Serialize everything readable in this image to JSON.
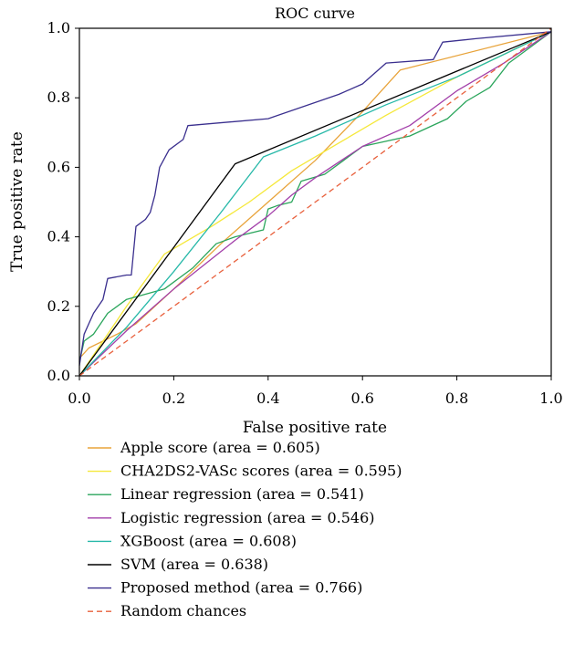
{
  "chart_data": {
    "type": "line",
    "title": "ROC curve",
    "xlabel": "False positive rate",
    "ylabel": "True positive rate",
    "xlim": [
      0,
      1
    ],
    "ylim": [
      0,
      1
    ],
    "x_ticks": [
      "0.0",
      "0.2",
      "0.4",
      "0.6",
      "0.8",
      "1.0"
    ],
    "y_ticks": [
      "0.0",
      "0.2",
      "0.4",
      "0.6",
      "0.8",
      "1.0"
    ],
    "grid": false,
    "legend_position": "below",
    "series": [
      {
        "name": "Apple score (area = 0.605)",
        "color": "#e8a33a",
        "dash": false,
        "points": [
          [
            0,
            0.05
          ],
          [
            0.02,
            0.08
          ],
          [
            0.08,
            0.12
          ],
          [
            0.12,
            0.15
          ],
          [
            0.2,
            0.25
          ],
          [
            0.3,
            0.38
          ],
          [
            0.4,
            0.5
          ],
          [
            0.5,
            0.62
          ],
          [
            0.6,
            0.76
          ],
          [
            0.68,
            0.88
          ],
          [
            1.0,
            0.99
          ]
        ]
      },
      {
        "name": "CHA2DS2-VASc scores (area = 0.595)",
        "color": "#f5e83a",
        "dash": false,
        "points": [
          [
            0,
            0
          ],
          [
            0.1,
            0.2
          ],
          [
            0.18,
            0.35
          ],
          [
            0.28,
            0.43
          ],
          [
            0.36,
            0.5
          ],
          [
            0.45,
            0.59
          ],
          [
            0.55,
            0.67
          ],
          [
            0.65,
            0.75
          ],
          [
            0.8,
            0.86
          ],
          [
            1.0,
            0.99
          ]
        ]
      },
      {
        "name": "Linear regression (area = 0.541)",
        "color": "#2aa55b",
        "dash": false,
        "points": [
          [
            0,
            0.04
          ],
          [
            0.01,
            0.1
          ],
          [
            0.03,
            0.12
          ],
          [
            0.06,
            0.18
          ],
          [
            0.1,
            0.22
          ],
          [
            0.18,
            0.25
          ],
          [
            0.24,
            0.31
          ],
          [
            0.29,
            0.38
          ],
          [
            0.33,
            0.4
          ],
          [
            0.39,
            0.42
          ],
          [
            0.4,
            0.48
          ],
          [
            0.42,
            0.49
          ],
          [
            0.45,
            0.5
          ],
          [
            0.47,
            0.56
          ],
          [
            0.52,
            0.58
          ],
          [
            0.56,
            0.62
          ],
          [
            0.6,
            0.66
          ],
          [
            0.7,
            0.69
          ],
          [
            0.78,
            0.74
          ],
          [
            0.82,
            0.79
          ],
          [
            0.87,
            0.83
          ],
          [
            0.91,
            0.9
          ],
          [
            0.96,
            0.95
          ],
          [
            1.0,
            0.99
          ]
        ]
      },
      {
        "name": "Logistic regression (area = 0.546)",
        "color": "#a23ea9",
        "dash": false,
        "points": [
          [
            0,
            0
          ],
          [
            0.1,
            0.13
          ],
          [
            0.2,
            0.25
          ],
          [
            0.33,
            0.39
          ],
          [
            0.4,
            0.46
          ],
          [
            0.45,
            0.52
          ],
          [
            0.5,
            0.57
          ],
          [
            0.6,
            0.66
          ],
          [
            0.7,
            0.72
          ],
          [
            0.8,
            0.82
          ],
          [
            0.9,
            0.9
          ],
          [
            1.0,
            0.99
          ]
        ]
      },
      {
        "name": "XGBoost (area = 0.608)",
        "color": "#26b8a8",
        "dash": false,
        "points": [
          [
            0,
            0
          ],
          [
            0.1,
            0.14
          ],
          [
            0.2,
            0.3
          ],
          [
            0.3,
            0.47
          ],
          [
            0.39,
            0.63
          ],
          [
            0.5,
            0.69
          ],
          [
            0.65,
            0.78
          ],
          [
            0.8,
            0.86
          ],
          [
            1.0,
            0.99
          ]
        ]
      },
      {
        "name": "SVM (area = 0.638)",
        "color": "#000000",
        "dash": false,
        "points": [
          [
            0,
            0
          ],
          [
            0.33,
            0.61
          ],
          [
            1.0,
            0.99
          ]
        ]
      },
      {
        "name": "Proposed method (area = 0.766)",
        "color": "#3a2f8e",
        "dash": false,
        "points": [
          [
            0,
            0.03
          ],
          [
            0.01,
            0.12
          ],
          [
            0.02,
            0.15
          ],
          [
            0.03,
            0.18
          ],
          [
            0.05,
            0.22
          ],
          [
            0.06,
            0.28
          ],
          [
            0.1,
            0.29
          ],
          [
            0.11,
            0.29
          ],
          [
            0.12,
            0.43
          ],
          [
            0.14,
            0.45
          ],
          [
            0.15,
            0.47
          ],
          [
            0.16,
            0.52
          ],
          [
            0.17,
            0.6
          ],
          [
            0.19,
            0.65
          ],
          [
            0.22,
            0.68
          ],
          [
            0.23,
            0.72
          ],
          [
            0.4,
            0.74
          ],
          [
            0.55,
            0.81
          ],
          [
            0.6,
            0.84
          ],
          [
            0.65,
            0.9
          ],
          [
            0.75,
            0.91
          ],
          [
            0.77,
            0.96
          ],
          [
            0.84,
            0.97
          ],
          [
            1.0,
            0.99
          ]
        ]
      },
      {
        "name": "Random chances",
        "color": "#e8603c",
        "dash": true,
        "points": [
          [
            0,
            0
          ],
          [
            1.0,
            1.0
          ]
        ]
      }
    ]
  }
}
